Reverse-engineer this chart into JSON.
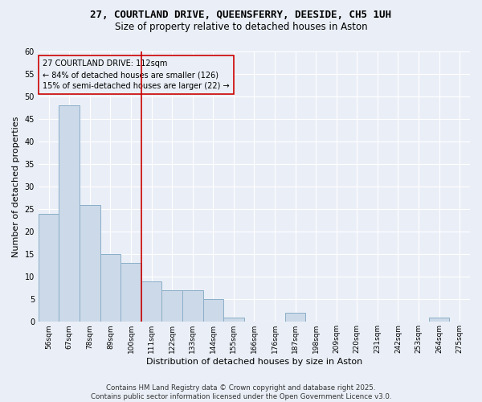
{
  "title_line1": "27, COURTLAND DRIVE, QUEENSFERRY, DEESIDE, CH5 1UH",
  "title_line2": "Size of property relative to detached houses in Aston",
  "xlabel": "Distribution of detached houses by size in Aston",
  "ylabel": "Number of detached properties",
  "categories": [
    "56sqm",
    "67sqm",
    "78sqm",
    "89sqm",
    "100sqm",
    "111sqm",
    "122sqm",
    "133sqm",
    "144sqm",
    "155sqm",
    "166sqm",
    "176sqm",
    "187sqm",
    "198sqm",
    "209sqm",
    "220sqm",
    "231sqm",
    "242sqm",
    "253sqm",
    "264sqm",
    "275sqm"
  ],
  "values": [
    24,
    48,
    26,
    15,
    13,
    9,
    7,
    7,
    5,
    1,
    0,
    0,
    2,
    0,
    0,
    0,
    0,
    0,
    0,
    1,
    0
  ],
  "bar_color": "#ccd9e8",
  "bar_edgecolor": "#8aaec8",
  "subject_line_index": 5,
  "subject_line_color": "#cc0000",
  "annotation_text": "27 COURTLAND DRIVE: 112sqm\n← 84% of detached houses are smaller (126)\n15% of semi-detached houses are larger (22) →",
  "annotation_box_edgecolor": "#cc0000",
  "ylim": [
    0,
    60
  ],
  "yticks": [
    0,
    5,
    10,
    15,
    20,
    25,
    30,
    35,
    40,
    45,
    50,
    55,
    60
  ],
  "background_color": "#eaeff7",
  "grid_color": "#ffffff",
  "footer_text": "Contains HM Land Registry data © Crown copyright and database right 2025.\nContains public sector information licensed under the Open Government Licence v3.0."
}
